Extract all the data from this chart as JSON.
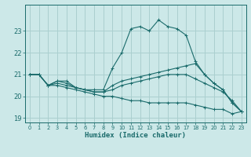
{
  "xlabel": "Humidex (Indice chaleur)",
  "bg_color": "#cce8e8",
  "grid_color": "#aacfcf",
  "line_color": "#1a6b6b",
  "x_ticks": [
    0,
    1,
    2,
    3,
    4,
    5,
    6,
    7,
    8,
    9,
    10,
    11,
    12,
    13,
    14,
    15,
    16,
    17,
    18,
    19,
    20,
    21,
    22,
    23
  ],
  "y_ticks": [
    19,
    20,
    21,
    22,
    23
  ],
  "xlim": [
    -0.5,
    23.5
  ],
  "ylim": [
    18.8,
    24.2
  ],
  "series": [
    {
      "x": [
        0,
        1,
        2,
        3,
        4,
        5,
        6,
        7,
        8,
        9,
        10,
        11,
        12,
        13,
        14,
        15,
        16,
        17,
        18,
        19,
        20,
        21,
        22,
        23
      ],
      "y": [
        21.0,
        21.0,
        20.5,
        20.7,
        20.7,
        20.4,
        20.3,
        20.3,
        20.3,
        21.3,
        22.0,
        23.1,
        23.2,
        23.0,
        23.5,
        23.2,
        23.1,
        22.8,
        21.6,
        21.0,
        20.6,
        20.3,
        19.7,
        19.3
      ]
    },
    {
      "x": [
        0,
        1,
        2,
        3,
        4,
        5,
        6,
        7,
        8,
        9,
        10,
        11,
        12,
        13,
        14,
        15,
        16,
        17,
        18,
        19,
        20,
        21,
        22,
        23
      ],
      "y": [
        21.0,
        21.0,
        20.5,
        20.7,
        20.6,
        20.4,
        20.3,
        20.2,
        20.2,
        20.5,
        20.7,
        20.8,
        20.9,
        21.0,
        21.1,
        21.2,
        21.3,
        21.4,
        21.5,
        21.0,
        20.6,
        20.3,
        19.7,
        19.3
      ]
    },
    {
      "x": [
        0,
        1,
        2,
        3,
        4,
        5,
        6,
        7,
        8,
        9,
        10,
        11,
        12,
        13,
        14,
        15,
        16,
        17,
        18,
        19,
        20,
        21,
        22,
        23
      ],
      "y": [
        21.0,
        21.0,
        20.5,
        20.6,
        20.5,
        20.4,
        20.3,
        20.2,
        20.2,
        20.3,
        20.5,
        20.6,
        20.7,
        20.8,
        20.9,
        21.0,
        21.0,
        21.0,
        20.8,
        20.6,
        20.4,
        20.2,
        19.8,
        19.3
      ]
    },
    {
      "x": [
        0,
        1,
        2,
        3,
        4,
        5,
        6,
        7,
        8,
        9,
        10,
        11,
        12,
        13,
        14,
        15,
        16,
        17,
        18,
        19,
        20,
        21,
        22,
        23
      ],
      "y": [
        21.0,
        21.0,
        20.5,
        20.5,
        20.4,
        20.3,
        20.2,
        20.1,
        20.0,
        20.0,
        19.9,
        19.8,
        19.8,
        19.7,
        19.7,
        19.7,
        19.7,
        19.7,
        19.6,
        19.5,
        19.4,
        19.4,
        19.2,
        19.3
      ]
    }
  ]
}
